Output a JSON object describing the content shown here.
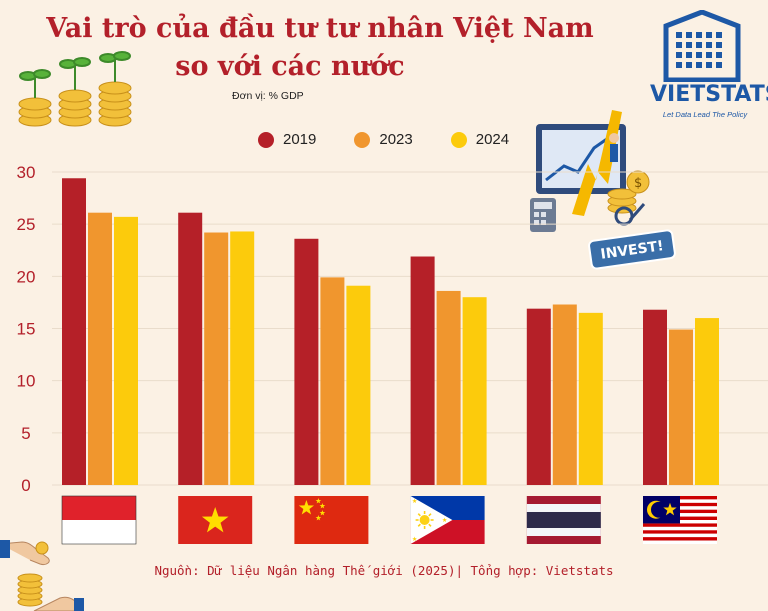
{
  "header": {
    "title_line1": "Vai trò của đầu tư tư nhân Việt Nam",
    "title_line2": "so với các nước",
    "unit": "Đơn vị: % GDP"
  },
  "logo": {
    "name": "VIETSTATS",
    "tagline": "Let Data Lead The Policy"
  },
  "illustration": {
    "invest_sign": "INVEST!"
  },
  "footer": {
    "source": "Nguồn: Dữ liệu Ngân hàng Thế giới (2025)| Tổng hợp: Vietstats"
  },
  "colors": {
    "accent": "#b3202a",
    "bg": "#fbf1e4",
    "logo_blue": "#1d58a6"
  },
  "chart_data": {
    "type": "bar",
    "categories": [
      "Indonesia",
      "Vietnam",
      "China",
      "Philippines",
      "Thailand",
      "Malaysia"
    ],
    "category_display": "flags",
    "series": [
      {
        "name": "2019",
        "color": "#b52028",
        "values": [
          29.4,
          26.1,
          23.6,
          21.9,
          16.9,
          16.8
        ]
      },
      {
        "name": "2023",
        "color": "#f0962e",
        "values": [
          26.1,
          24.2,
          19.9,
          18.6,
          17.3,
          14.9
        ]
      },
      {
        "name": "2024",
        "color": "#fccb0c",
        "values": [
          25.7,
          24.3,
          19.1,
          18.0,
          16.5,
          16.0
        ]
      }
    ],
    "yticks": [
      0,
      5,
      10,
      15,
      20,
      25,
      30
    ],
    "ylim": [
      0,
      30
    ],
    "grid": true,
    "legend_position": "top"
  }
}
